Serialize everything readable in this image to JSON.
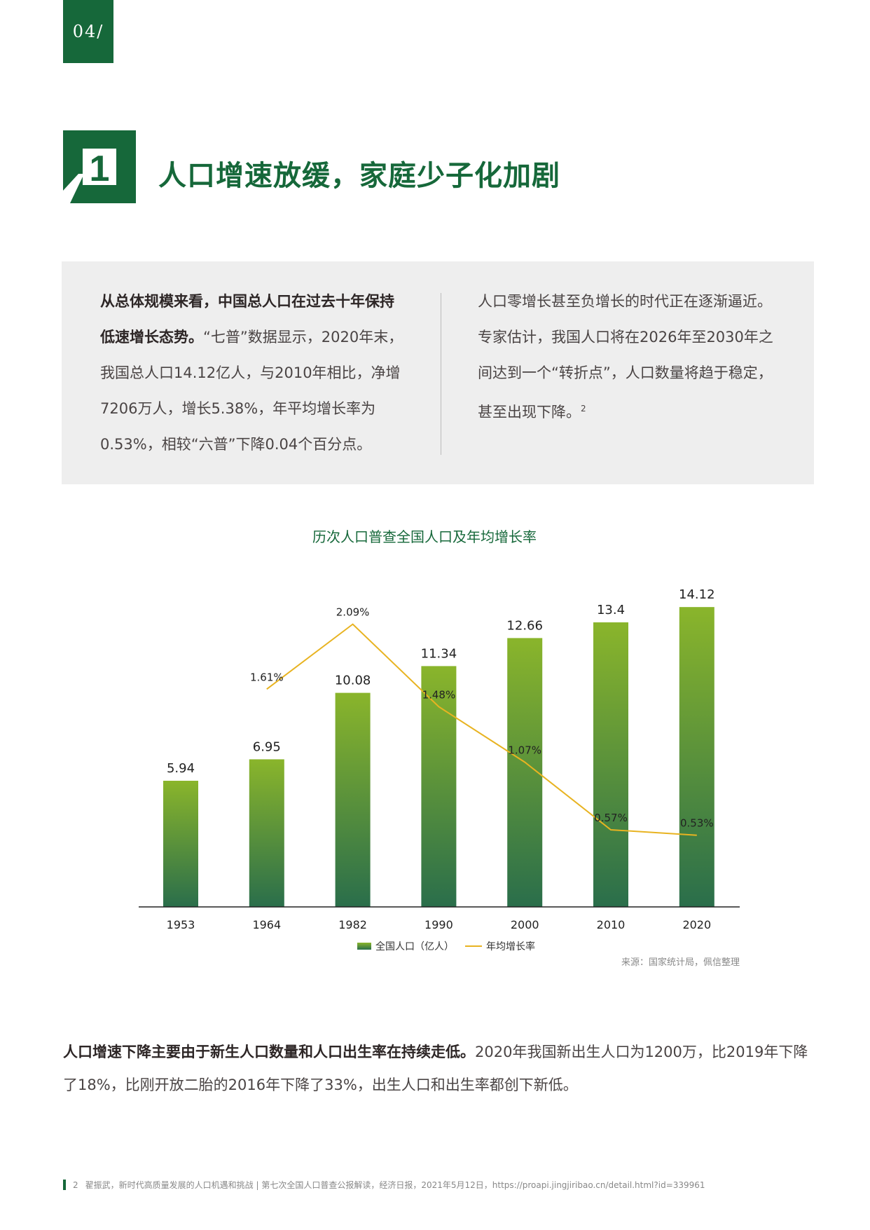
{
  "page_number": "04/",
  "section": {
    "number": "1",
    "title": "人口增速放缓，家庭少子化加剧"
  },
  "intro": {
    "left_bold": "从总体规模来看，中国总人口在过去十年保持低速增长态势。",
    "left_rest": "“七普”数据显示，2020年末，我国总人口14.12亿人，与2010年相比，净增7206万人，增长5.38%，年平均增长率为0.53%，相较“六普”下降0.04个百分点。",
    "right": "人口零增长甚至负增长的时代正在逐渐逼近。专家估计，我国人口将在2026年至2030年之间达到一个“转折点”，人口数量将趋于稳定，甚至出现下降。",
    "right_footnote": "2"
  },
  "chart_data": {
    "type": "bar+line",
    "title": "历次人口普查全国人口及年均增长率",
    "categories": [
      "1953",
      "1964",
      "1982",
      "1990",
      "2000",
      "2010",
      "2020"
    ],
    "series": [
      {
        "name": "全国人口（亿人）",
        "type": "bar",
        "values": [
          5.94,
          6.95,
          10.08,
          11.34,
          12.66,
          13.4,
          14.12
        ],
        "labels": [
          "5.94",
          "6.95",
          "10.08",
          "11.34",
          "12.66",
          "13.4",
          "14.12"
        ],
        "color_top": "#8ab52b",
        "color_bottom": "#2a6e4b"
      },
      {
        "name": "年均增长率",
        "type": "line",
        "values": [
          null,
          1.61,
          2.09,
          1.48,
          1.07,
          0.57,
          0.53
        ],
        "labels": [
          "",
          "1.61%",
          "2.09%",
          "1.48%",
          "1.07%",
          "0.57%",
          "0.53%"
        ],
        "unit": "%",
        "color": "#e8b321"
      }
    ],
    "legend": "bottom",
    "grid": false,
    "source": "来源：国家统计局，佩信整理"
  },
  "body": {
    "bold": "人口增速下降主要由于新生人口数量和人口出生率在持续走低。",
    "rest": "2020年我国新出生人口为1200万，比2019年下降了18%，比刚开放二胎的2016年下降了33%，出生人口和出生率都创下新低。"
  },
  "footnote": {
    "number": "2",
    "text": "翟振武，新时代高质量发展的人口机遇和挑战 | 第七次全国人口普查公报解读，经济日报，2021年5月12日，https://proapi.jingjiribao.cn/detail.html?id=339961"
  },
  "colors": {
    "brand_green": "#16683a",
    "panel_grey": "#eeeeee"
  }
}
